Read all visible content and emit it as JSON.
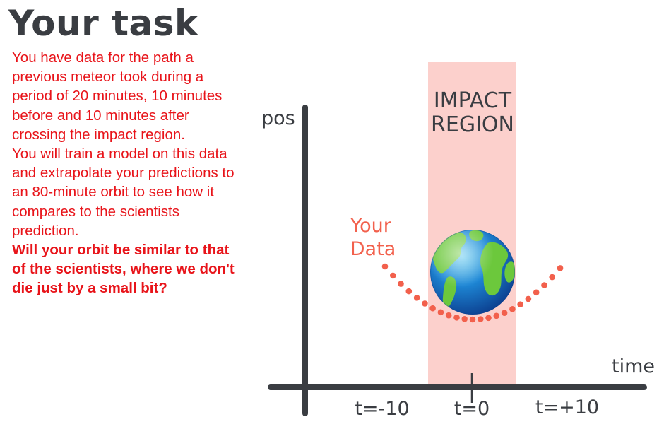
{
  "title": "Your task",
  "intro_paragraph": "You have data for the path a previous meteor took during a period of 20 minutes, 10 minutes before and 10 minutes after crossing the impact region.",
  "training_paragraph": "You will train a model on this data and extrapolate your predictions to an 80-minute orbit to see how it compares to the scientists prediction.",
  "question": "Will your orbit be similar to that of the scientists, where we don't die just by a small bit?",
  "diagram": {
    "y_axis_label": "pos",
    "x_axis_label": "time",
    "impact_region_label_line1": "IMPACT",
    "impact_region_label_line2": "REGION",
    "data_label_line1": "Your",
    "data_label_line2": "Data",
    "tick_labels": [
      "t=-10",
      "t=0",
      "t=+10"
    ],
    "colors": {
      "axis": "#3a3d42",
      "impact_region": "#fcd0cc",
      "data_points": "#f2604c",
      "text_dark": "#3a3d42",
      "task_text": "#e8141a"
    },
    "icons": [
      "earth-globe-icon"
    ]
  }
}
